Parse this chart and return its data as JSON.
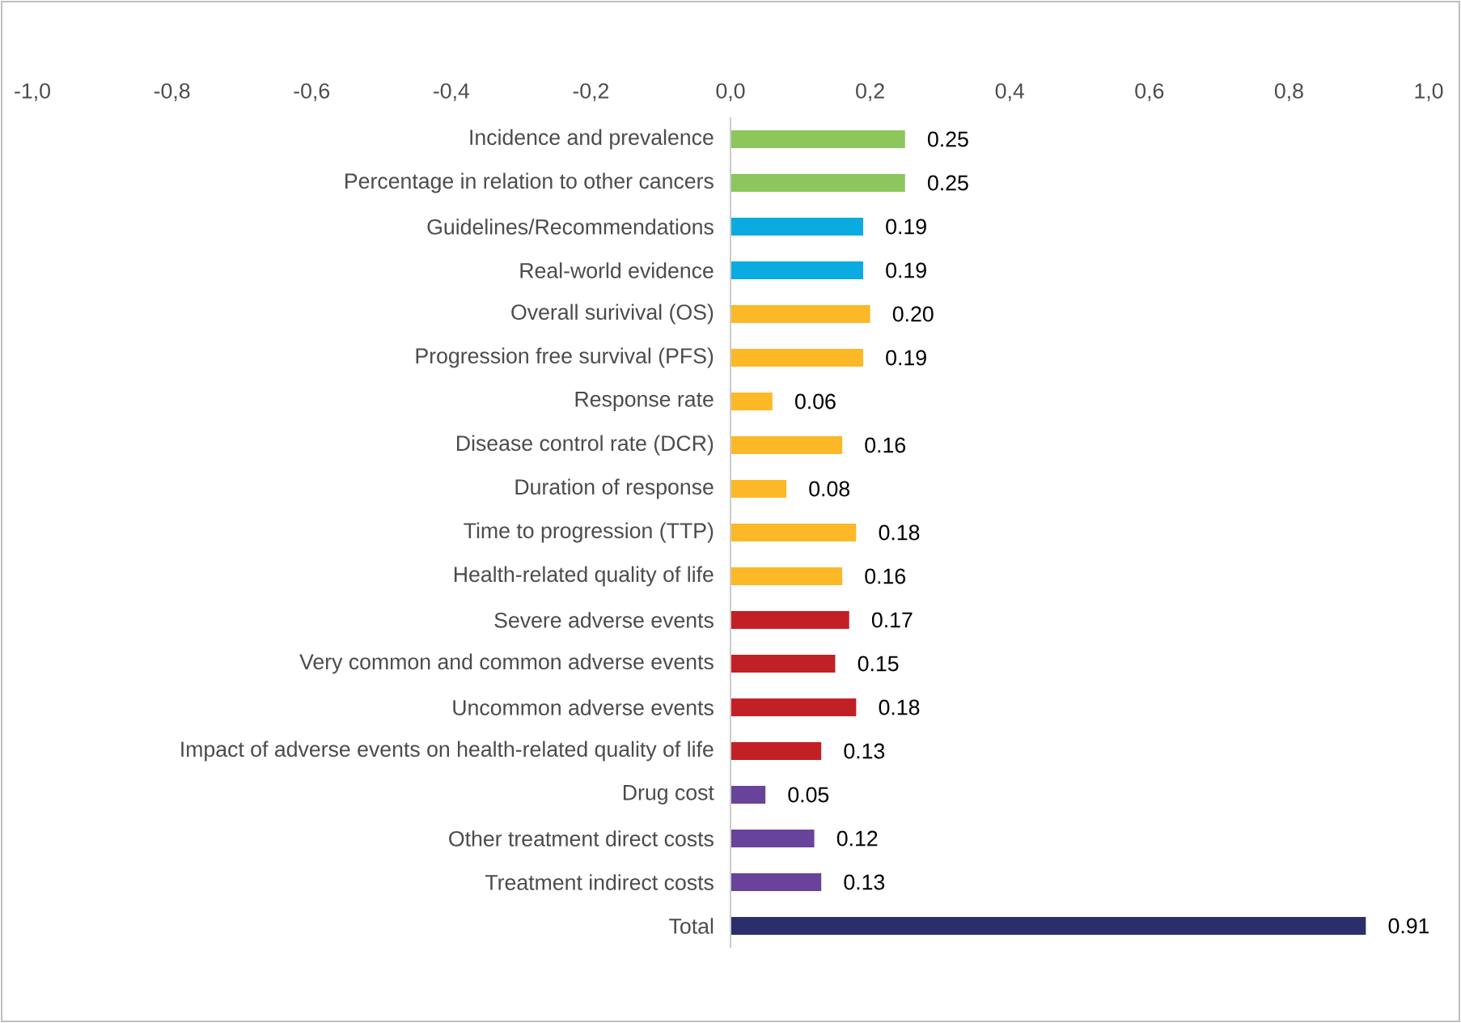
{
  "chart_data": {
    "type": "bar",
    "orientation": "horizontal",
    "categories": [
      "Incidence and prevalence",
      "Percentage in relation to other cancers",
      "Guidelines/Recommendations",
      "Real-world evidence",
      "Overall surivival (OS)",
      "Progression free survival (PFS)",
      "Response rate",
      "Disease control rate (DCR)",
      "Duration of response",
      "Time to progression (TTP)",
      "Health-related quality of life",
      "Severe adverse events",
      "Very common and common adverse events",
      "Uncommon adverse events",
      "Impact of adverse events on health-related quality of life",
      "Drug cost",
      "Other treatment direct costs",
      "Treatment indirect costs",
      "Total"
    ],
    "values": [
      0.25,
      0.25,
      0.19,
      0.19,
      0.2,
      0.19,
      0.06,
      0.16,
      0.08,
      0.18,
      0.16,
      0.17,
      0.15,
      0.18,
      0.13,
      0.05,
      0.12,
      0.13,
      0.91
    ],
    "value_labels": [
      "0.25",
      "0.25",
      "0.19",
      "0.19",
      "0.20",
      "0.19",
      "0.06",
      "0.16",
      "0.08",
      "0.18",
      "0.16",
      "0.17",
      "0.15",
      "0.18",
      "0.13",
      "0.05",
      "0.12",
      "0.13",
      "0.91"
    ],
    "colors": [
      "#8cc65c",
      "#8cc65c",
      "#0aabe1",
      "#0aabe1",
      "#fdb827",
      "#fdb827",
      "#fdb827",
      "#fdb827",
      "#fdb827",
      "#fdb827",
      "#fdb827",
      "#c22027",
      "#c22027",
      "#c22027",
      "#c22027",
      "#694399",
      "#694399",
      "#694399",
      "#2a2f6b"
    ],
    "xlim": [
      -1,
      1
    ],
    "xticks": [
      {
        "value": -1,
        "label": "-1,0"
      },
      {
        "value": -0.8,
        "label": "-0,8"
      },
      {
        "value": -0.6,
        "label": "-0,6"
      },
      {
        "value": -0.4,
        "label": "-0,4"
      },
      {
        "value": -0.2,
        "label": "-0,2"
      },
      {
        "value": 0,
        "label": "0,0"
      },
      {
        "value": 0.2,
        "label": "0,2"
      },
      {
        "value": 0.4,
        "label": "0,4"
      },
      {
        "value": 0.6,
        "label": "0,6"
      },
      {
        "value": 0.8,
        "label": "0,8"
      },
      {
        "value": 1,
        "label": "1,0"
      }
    ],
    "grid": false
  }
}
